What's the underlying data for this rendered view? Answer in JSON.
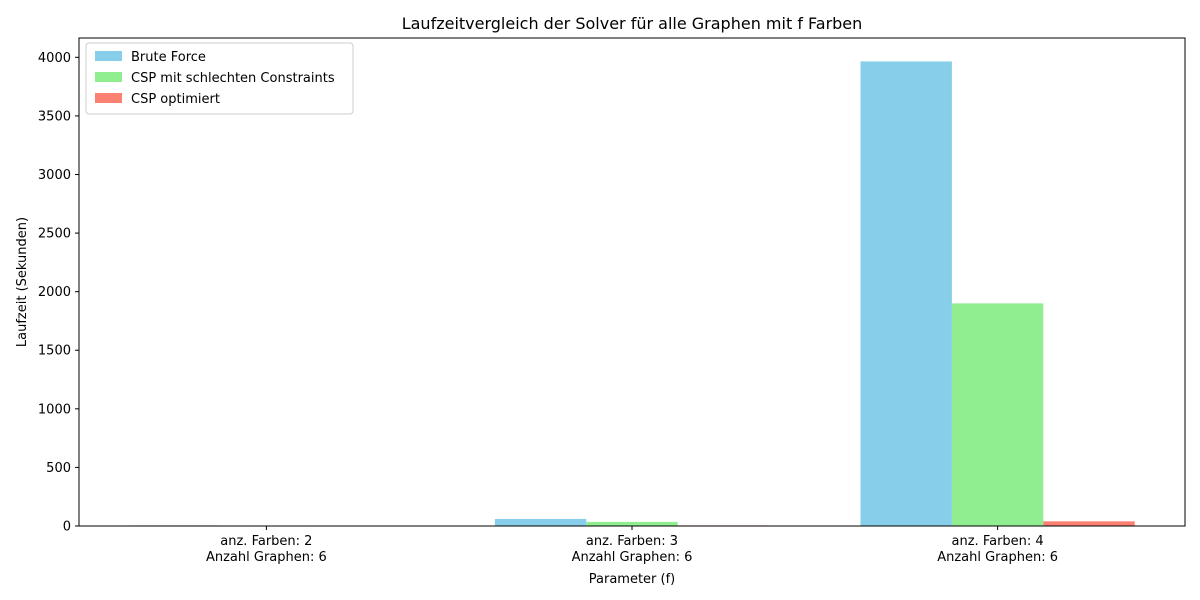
{
  "chart_data": {
    "type": "bar",
    "title": "Laufzeitvergleich der Solver für alle Graphen mit f Farben",
    "xlabel": "Parameter (f)",
    "ylabel": "Laufzeit (Sekunden)",
    "categories": [
      [
        "anz. Farben: 2",
        "Anzahl Graphen: 6"
      ],
      [
        "anz. Farben: 3",
        "Anzahl Graphen: 6"
      ],
      [
        "anz. Farben: 4",
        "Anzahl Graphen: 6"
      ]
    ],
    "series": [
      {
        "name": "Brute Force",
        "color": "#87ceeb",
        "values": [
          5,
          60,
          3965
        ]
      },
      {
        "name": "CSP mit schlechten Constraints",
        "color": "#90ee90",
        "values": [
          3,
          35,
          1900
        ]
      },
      {
        "name": "CSP optimiert",
        "color": "#fa8072",
        "values": [
          1,
          5,
          40
        ]
      }
    ],
    "ylim": [
      0,
      4165
    ],
    "yticks": [
      0,
      500,
      1000,
      1500,
      2000,
      2500,
      3000,
      3500,
      4000
    ],
    "grid": false,
    "legend_position": "top-left"
  }
}
